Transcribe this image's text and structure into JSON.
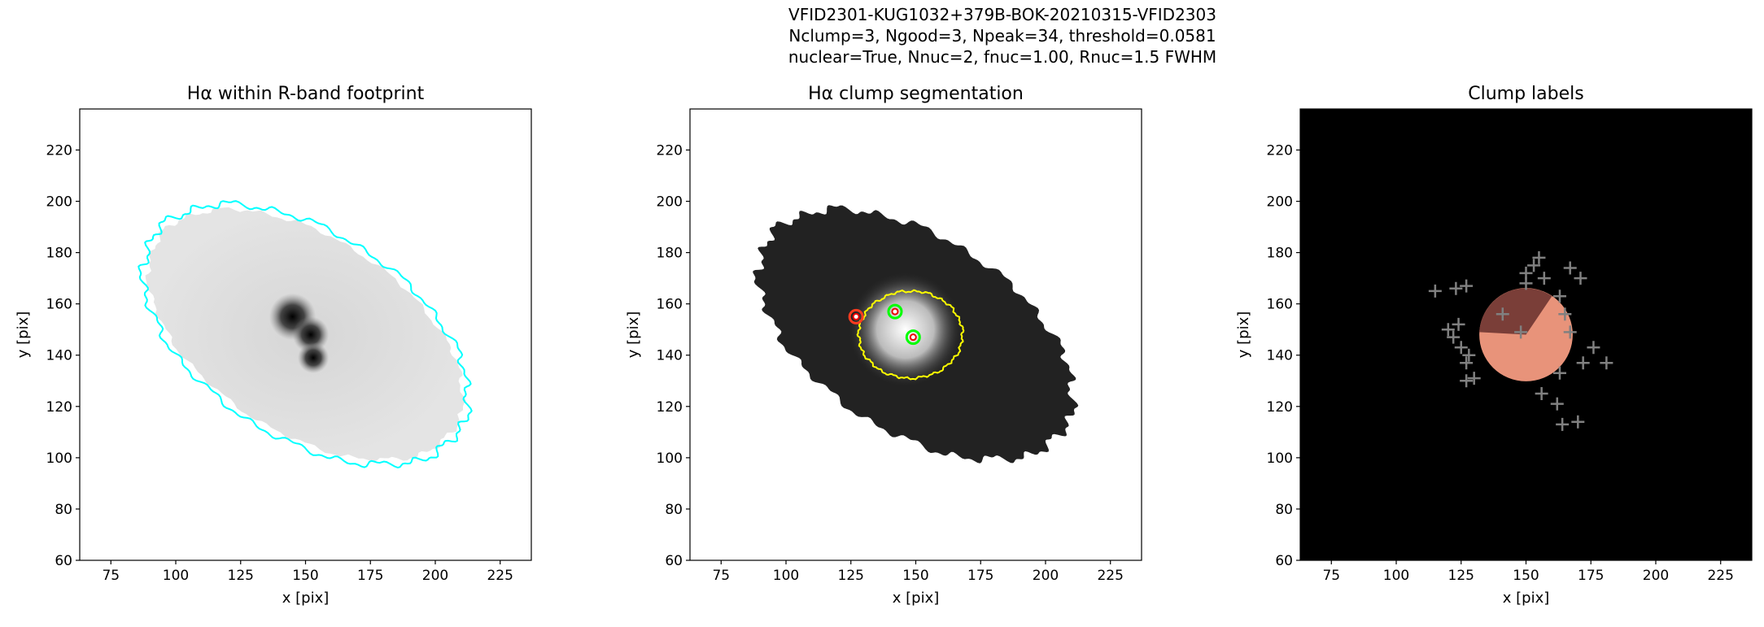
{
  "suptitle": [
    "VFID2301-KUG1032+379B-BOK-20210315-VFID2303",
    "Nclump=3, Ngood=3, Npeak=34, threshold=0.0581",
    "nuclear=True, Nnuc=2, fnuc=1.00, Rnuc=1.5 FWHM"
  ],
  "chart_data": [
    {
      "type": "image",
      "title": "Hα within R-band footprint",
      "xlabel": "x [pix]",
      "ylabel": "y [pix]",
      "xlim": [
        63,
        237
      ],
      "ylim": [
        60,
        236
      ],
      "xticks": [
        75,
        100,
        125,
        150,
        175,
        200,
        225
      ],
      "yticks": [
        60,
        80,
        100,
        120,
        140,
        160,
        180,
        200,
        220
      ],
      "background": "#ffffff",
      "contour_color": "#00ffff"
    },
    {
      "type": "image",
      "title": "Hα clump segmentation",
      "xlabel": "x [pix]",
      "ylabel": "y [pix]",
      "xlim": [
        63,
        237
      ],
      "ylim": [
        60,
        236
      ],
      "xticks": [
        75,
        100,
        125,
        150,
        175,
        200,
        225
      ],
      "yticks": [
        60,
        80,
        100,
        120,
        140,
        160,
        180,
        200,
        220
      ],
      "background": "#ffffff",
      "contour_color": "#ffff00",
      "points": {
        "x": [
          127,
          142,
          149
        ],
        "y": [
          155,
          157,
          147
        ],
        "colors": [
          "#ff3b1f",
          "#00ff00",
          "#00ff00"
        ]
      }
    },
    {
      "type": "image",
      "title": "Clump labels",
      "xlabel": "x [pix]",
      "ylabel": "y [pix]",
      "xlim": [
        63,
        237
      ],
      "ylim": [
        60,
        236
      ],
      "xticks": [
        75,
        100,
        125,
        150,
        175,
        200,
        225
      ],
      "yticks": [
        60,
        80,
        100,
        120,
        140,
        160,
        180,
        200,
        220
      ],
      "background": "#000000",
      "color": "#808080",
      "points": {
        "x": [
          115,
          123,
          127,
          120,
          122,
          124,
          125,
          127,
          128,
          127,
          130,
          141,
          150,
          153,
          155,
          150,
          157,
          163,
          165,
          167,
          171,
          167,
          163,
          172,
          176,
          181,
          156,
          162,
          170,
          164,
          148
        ],
        "y": [
          165,
          166,
          167,
          150,
          147,
          152,
          143,
          137,
          140,
          130,
          131,
          156,
          172,
          175,
          178,
          168,
          170,
          163,
          156,
          174,
          170,
          149,
          133,
          137,
          143,
          137,
          125,
          121,
          114,
          113,
          149
        ]
      }
    }
  ]
}
